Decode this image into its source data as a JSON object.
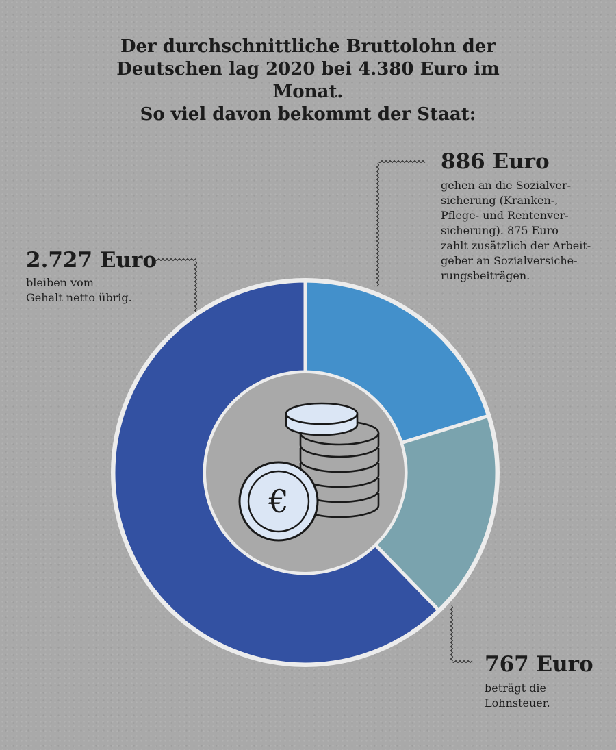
{
  "header": {
    "title_lines": [
      "Der durchschnittliche Bruttolohn der",
      "Deutschen lag 2020 bei 4.380 Euro im Monat.",
      "So viel davon bekommt der Staat:"
    ]
  },
  "annotations": {
    "net": {
      "amount": "2.727 Euro",
      "desc_lines": [
        "bleiben vom",
        "Gehalt netto übrig."
      ]
    },
    "social": {
      "amount": "886 Euro",
      "desc_lines": [
        "gehen an die Sozialver-",
        "sicherung (Kranken-,",
        "Pflege- und Rentenver-",
        "sicherung). 875 Euro",
        "zahlt zusätzlich der Arbeit-",
        "geber an Sozialversiche-",
        "rungsbeiträgen."
      ]
    },
    "tax": {
      "amount": "767 Euro",
      "desc_lines": [
        "beträgt die",
        "Lohnsteuer."
      ]
    }
  },
  "center_icon": {
    "name": "euro-coin-stack-icon",
    "symbol": "€"
  },
  "chart_data": {
    "type": "pie",
    "variant": "donut",
    "title": "Der durchschnittliche Bruttolohn der Deutschen lag 2020 bei 4.380 Euro im Monat. So viel davon bekommt der Staat:",
    "total": 4380,
    "unit": "Euro",
    "slices": [
      {
        "label": "Sozialversicherung",
        "value": 886,
        "color": "#4390cb"
      },
      {
        "label": "Lohnsteuer",
        "value": 767,
        "color": "#7aa3ae"
      },
      {
        "label": "netto",
        "value": 2727,
        "color": "#3351a2"
      }
    ]
  },
  "colors": {
    "background": "#a9a9a9",
    "separator": "#ececec",
    "connector": "#2a2a2a",
    "coin_fill": "#dbe6f5",
    "coin_stroke": "#1a1a1a"
  }
}
